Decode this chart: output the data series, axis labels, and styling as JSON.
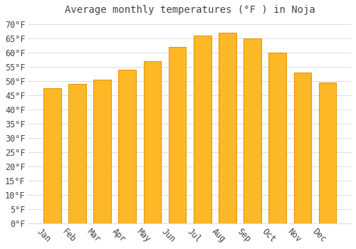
{
  "title": "Average monthly temperatures (°F ) in Noja",
  "months": [
    "Jan",
    "Feb",
    "Mar",
    "Apr",
    "May",
    "Jun",
    "Jul",
    "Aug",
    "Sep",
    "Oct",
    "Nov",
    "Dec"
  ],
  "values": [
    47.5,
    49.0,
    50.5,
    54.0,
    57.0,
    62.0,
    66.0,
    67.0,
    65.0,
    60.0,
    53.0,
    49.5
  ],
  "bar_color": "#FDB827",
  "bar_edge_color": "#E8950A",
  "background_color": "#ffffff",
  "grid_color": "#dddddd",
  "text_color": "#444444",
  "ytick_labels": [
    "0°F",
    "5°F",
    "10°F",
    "15°F",
    "20°F",
    "25°F",
    "30°F",
    "35°F",
    "40°F",
    "45°F",
    "50°F",
    "55°F",
    "60°F",
    "65°F",
    "70°F"
  ],
  "ytick_values": [
    0,
    5,
    10,
    15,
    20,
    25,
    30,
    35,
    40,
    45,
    50,
    55,
    60,
    65,
    70
  ],
  "ylim": [
    0,
    72
  ],
  "title_fontsize": 10,
  "tick_fontsize": 8.5,
  "xlabel_rotation": -45
}
